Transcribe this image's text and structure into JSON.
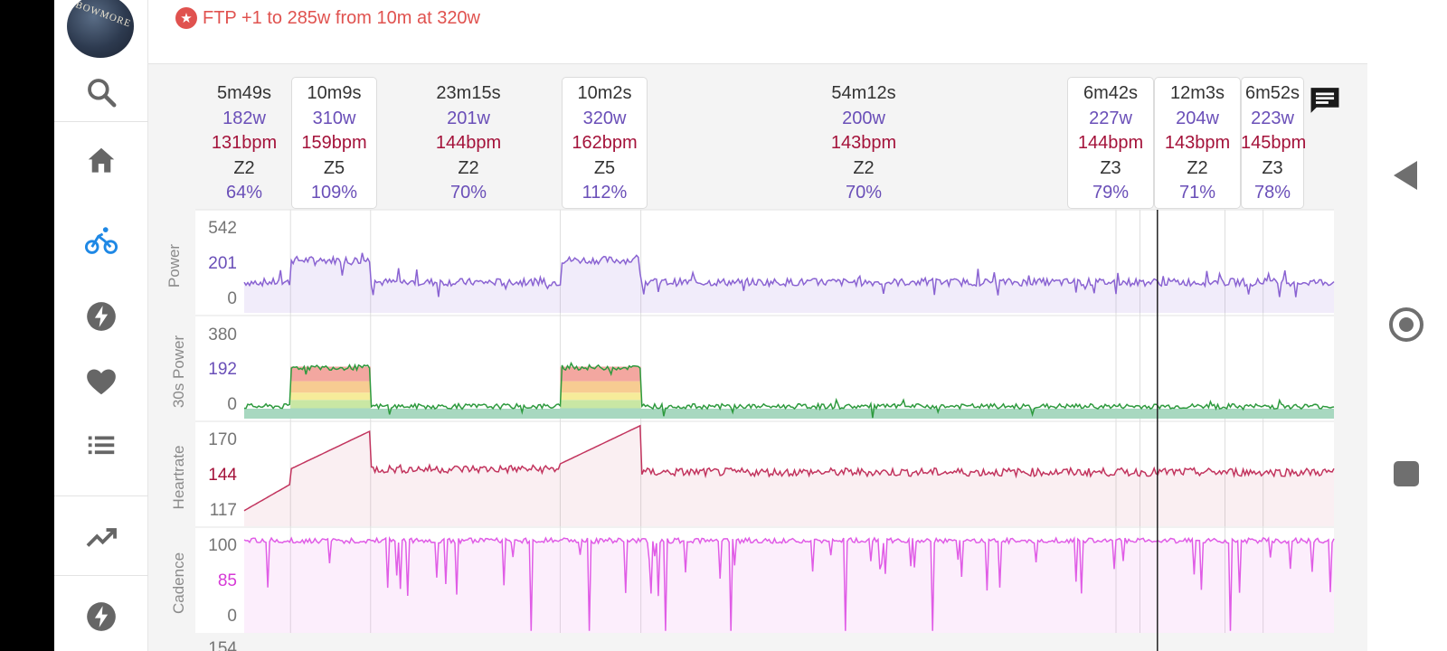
{
  "banner": {
    "icon": "star-badge-icon",
    "text": "FTP +1 to 285w from 10m at 320w",
    "color": "#e0524f"
  },
  "sidebar": {
    "avatar_text": "BOWMORE",
    "items": [
      {
        "name": "search",
        "icon": "search-icon"
      },
      {
        "name": "home",
        "icon": "home-icon"
      },
      {
        "name": "activities",
        "icon": "bike-icon",
        "active": true,
        "active_color": "#1e88e5"
      },
      {
        "name": "power",
        "icon": "bolt-icon"
      },
      {
        "name": "health",
        "icon": "heart-icon"
      },
      {
        "name": "list",
        "icon": "list-icon"
      },
      {
        "name": "fitness",
        "icon": "trending-up-icon"
      },
      {
        "name": "power-2",
        "icon": "bolt-icon"
      }
    ]
  },
  "intervals": [
    {
      "duration": "5m49s",
      "power": "182w",
      "heartrate": "131bpm",
      "zone": "Z2",
      "percent": "64%",
      "highlighted": false
    },
    {
      "duration": "10m9s",
      "power": "310w",
      "heartrate": "159bpm",
      "zone": "Z5",
      "percent": "109%",
      "highlighted": true
    },
    {
      "duration": "23m15s",
      "power": "201w",
      "heartrate": "144bpm",
      "zone": "Z2",
      "percent": "70%",
      "highlighted": false
    },
    {
      "duration": "10m2s",
      "power": "320w",
      "heartrate": "162bpm",
      "zone": "Z5",
      "percent": "112%",
      "highlighted": true
    },
    {
      "duration": "54m12s",
      "power": "200w",
      "heartrate": "143bpm",
      "zone": "Z2",
      "percent": "70%",
      "highlighted": false
    },
    {
      "duration": "6m42s",
      "power": "227w",
      "heartrate": "144bpm",
      "zone": "Z3",
      "percent": "79%",
      "highlighted": true
    },
    {
      "duration": "12m3s",
      "power": "204w",
      "heartrate": "143bpm",
      "zone": "Z2",
      "percent": "71%",
      "highlighted": true
    },
    {
      "duration": "6m52s",
      "power": "223w",
      "heartrate": "145bpm",
      "zone": "Z3",
      "percent": "78%",
      "highlighted": true
    }
  ],
  "charts": {
    "power": {
      "title": "Power",
      "ticks": [
        "542",
        "201",
        "0"
      ],
      "color": "#8a63d2"
    },
    "power30": {
      "title": "30s Power",
      "ticks": [
        "380",
        "192",
        "0"
      ]
    },
    "heartrate": {
      "title": "Heartrate",
      "ticks": [
        "170",
        "144",
        "117"
      ],
      "color": "#c2345e"
    },
    "cadence": {
      "title": "Cadence",
      "ticks": [
        "100",
        "85",
        "0"
      ],
      "color": "#e05ce6"
    },
    "next_tick": "154"
  },
  "chat_icon": "chat-icon",
  "system_nav": {
    "back": "back-icon",
    "home": "home-circle-icon",
    "recent": "recents-icon"
  }
}
